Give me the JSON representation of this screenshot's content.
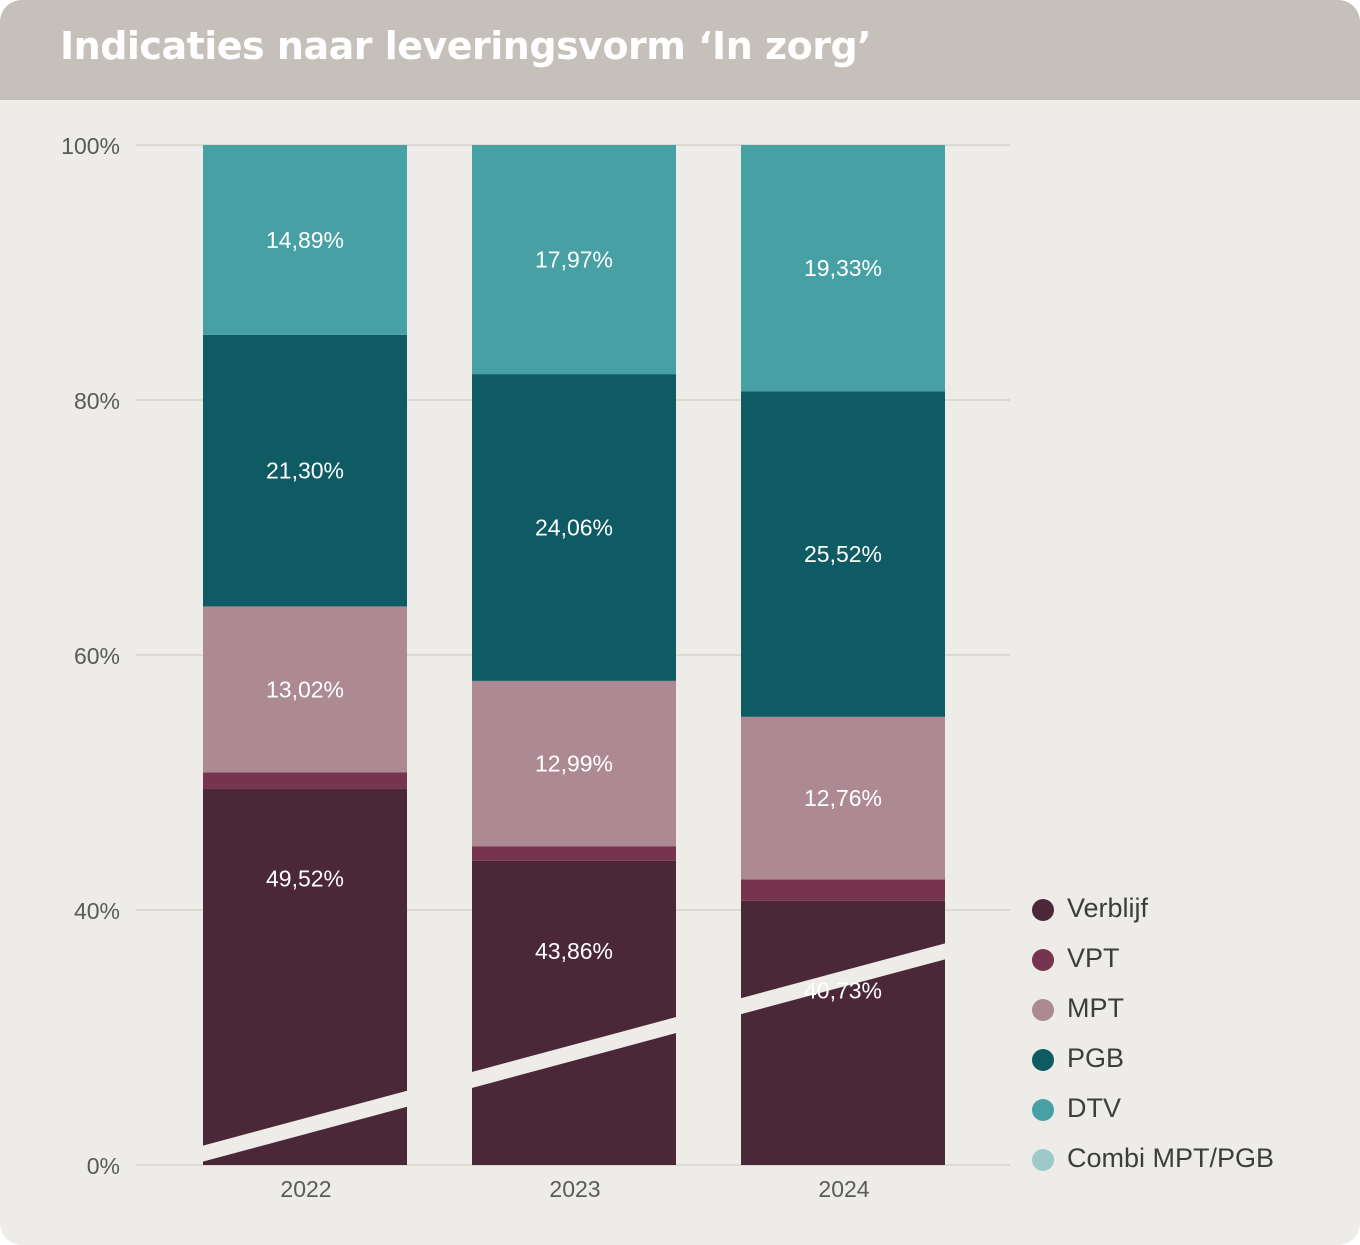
{
  "title": "Indicaties naar leveringsvorm ‘In zorg’",
  "chart_data": {
    "type": "bar",
    "stacked": true,
    "categories": [
      "2022",
      "2023",
      "2024"
    ],
    "ylim": [
      0,
      100
    ],
    "y_ticks": [
      "0%",
      "40%",
      "60%",
      "80%",
      "100%"
    ],
    "axis_break": "y-axis between 0% and 40%",
    "grid": true,
    "legend_position": "bottom-right",
    "series": [
      {
        "name": "Verblijf",
        "color": "#4a2838",
        "values": [
          49.52,
          43.86,
          40.73
        ],
        "labels": [
          "49,52%",
          "43,86%",
          "40,73%"
        ]
      },
      {
        "name": "VPT",
        "color": "#76344f",
        "values": [
          1.27,
          1.12,
          1.66
        ],
        "labels": [
          "",
          "",
          ""
        ]
      },
      {
        "name": "MPT",
        "color": "#ad8a93",
        "values": [
          13.02,
          12.99,
          12.76
        ],
        "labels": [
          "13,02%",
          "12,99%",
          "12,76%"
        ]
      },
      {
        "name": "PGB",
        "color": "#0e5b64",
        "values": [
          21.3,
          24.06,
          25.52
        ],
        "labels": [
          "21,30%",
          "24,06%",
          "25,52%"
        ]
      },
      {
        "name": "DTV",
        "color": "#47a1a4",
        "values": [
          14.89,
          17.97,
          19.33
        ],
        "labels": [
          "14,89%",
          "17,97%",
          "19,33%"
        ]
      },
      {
        "name": "Combi MPT/PGB",
        "color": "#9ec8c9",
        "values": [
          0,
          0,
          0
        ],
        "labels": [
          "",
          "",
          ""
        ]
      }
    ]
  }
}
